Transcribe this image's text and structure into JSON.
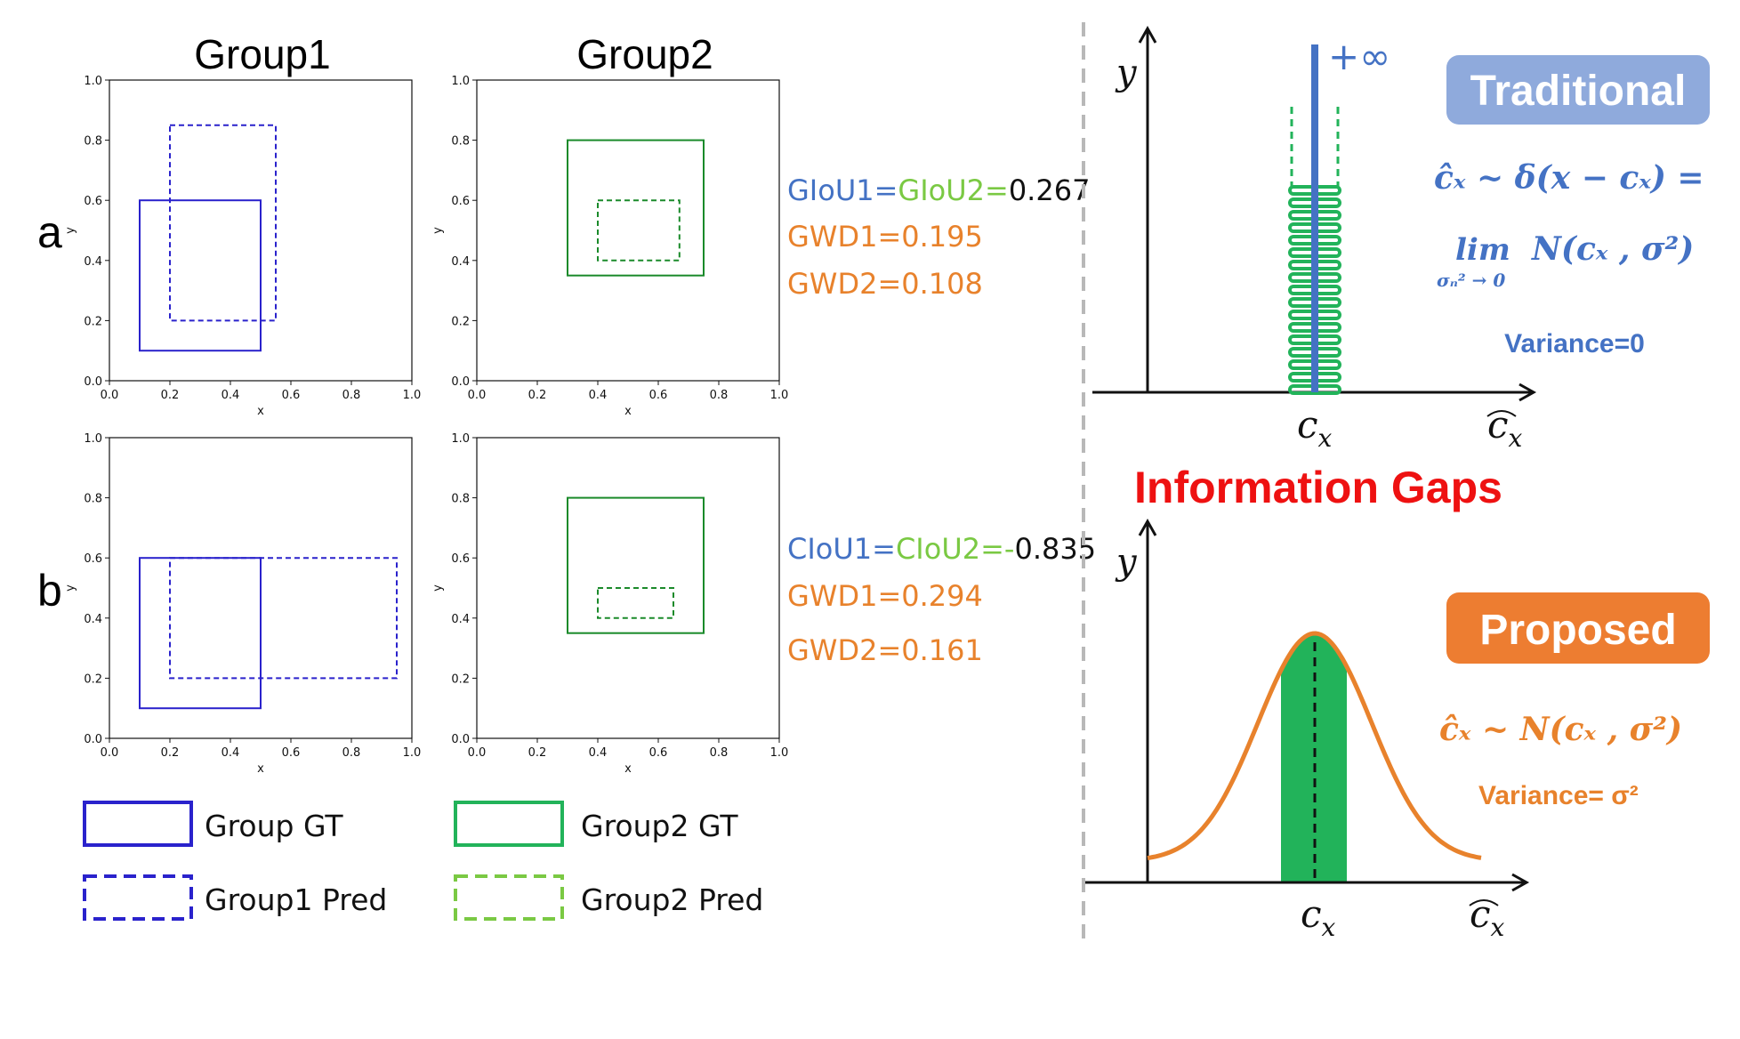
{
  "left": {
    "group1_title": "Group1",
    "group2_title": "Group2",
    "row_a": "a",
    "row_b": "b",
    "axis_label_x": "x",
    "axis_label_y": "y",
    "ticks": [
      "0.0",
      "0.2",
      "0.4",
      "0.6",
      "0.8",
      "1.0"
    ]
  },
  "metrics_a": {
    "iou1": "GIoU1=",
    "iou2": "GIoU2=",
    "value": "0.267",
    "gwd1": "GWD1=0.195",
    "gwd2": "GWD2=0.108"
  },
  "metrics_b": {
    "iou1": "CIoU1=",
    "iou2": "CIoU2=-",
    "value": "0.835",
    "gwd1": "GWD1=0.294",
    "gwd2": "GWD2=0.161"
  },
  "legend": {
    "g1_gt": "Group GT",
    "g1_pred": "Group1 Pred",
    "g2_gt": "Group2 GT",
    "g2_pred": "Group2 Pred"
  },
  "right": {
    "traditional": "Traditional",
    "proposed": "Proposed",
    "information_gaps": "Information  Gaps",
    "plus_inf": "+∞",
    "y_label": "y",
    "cx_label": "c",
    "cx_sub": "x",
    "cxhat_label": "c",
    "trad_formula_1": "ĉₓ ~ δ(x − cₓ) =",
    "trad_formula_lim": "lim",
    "trad_formula_lim_sub": "σₙ² → 0",
    "trad_formula_2": "N(cₓ , σ²)",
    "trad_variance": "Variance=0",
    "prop_formula": "ĉₓ ~ N(cₓ , σ²)",
    "prop_variance": "Variance= σ²"
  },
  "colors": {
    "blue_box": "#2a22cc",
    "green_box": "#1a8a2a",
    "light_green": "#7ac943",
    "orange": "#e8822c",
    "blue_text": "#4472c4",
    "trad_badge": "#8faadc",
    "prop_badge": "#ed7d31",
    "green_fill": "#22b35a"
  },
  "chart_data": [
    {
      "type": "box_overlap",
      "panel": "a-Group1",
      "xlim": [
        0,
        1
      ],
      "ylim": [
        0,
        1
      ],
      "gt": [
        0.1,
        0.1,
        0.5,
        0.6
      ],
      "pred": [
        0.2,
        0.2,
        0.55,
        0.85
      ]
    },
    {
      "type": "box_overlap",
      "panel": "a-Group2",
      "xlim": [
        0,
        1
      ],
      "ylim": [
        0,
        1
      ],
      "gt": [
        0.3,
        0.35,
        0.75,
        0.8
      ],
      "pred": [
        0.4,
        0.4,
        0.67,
        0.6
      ]
    },
    {
      "type": "box_overlap",
      "panel": "b-Group1",
      "xlim": [
        0,
        1
      ],
      "ylim": [
        0,
        1
      ],
      "gt": [
        0.1,
        0.1,
        0.5,
        0.6
      ],
      "pred": [
        0.2,
        0.2,
        0.95,
        0.6
      ]
    },
    {
      "type": "box_overlap",
      "panel": "b-Group2",
      "xlim": [
        0,
        1
      ],
      "ylim": [
        0,
        1
      ],
      "gt": [
        0.3,
        0.35,
        0.75,
        0.8
      ],
      "pred": [
        0.4,
        0.4,
        0.65,
        0.5
      ]
    }
  ]
}
